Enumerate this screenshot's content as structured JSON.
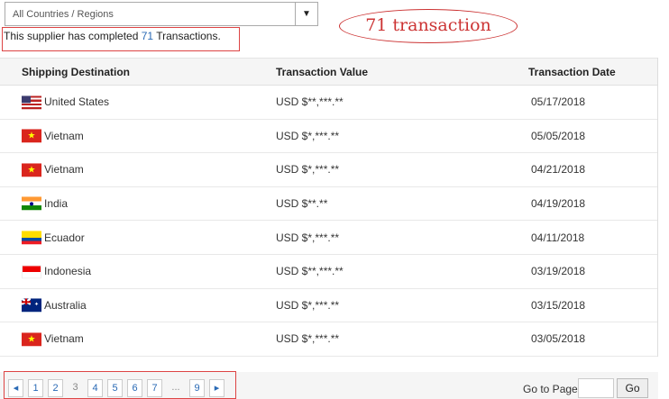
{
  "filter": {
    "selected": "All Countries / Regions"
  },
  "summary": {
    "prefix": "This supplier has completed ",
    "count": "71",
    "suffix": " Transactions."
  },
  "annotation": "71 transaction",
  "table": {
    "headers": [
      "Shipping Destination",
      "Transaction Value",
      "Transaction Date"
    ],
    "rows": [
      {
        "country": "United States",
        "flag": "us",
        "value": "USD $**,***.**",
        "date": "05/17/2018"
      },
      {
        "country": "Vietnam",
        "flag": "vn",
        "value": "USD $*,***.**",
        "date": "05/05/2018"
      },
      {
        "country": "Vietnam",
        "flag": "vn",
        "value": "USD $*,***.**",
        "date": "04/21/2018"
      },
      {
        "country": "India",
        "flag": "in",
        "value": "USD $**.**",
        "date": "04/19/2018"
      },
      {
        "country": "Ecuador",
        "flag": "ec",
        "value": "USD $*,***.**",
        "date": "04/11/2018"
      },
      {
        "country": "Indonesia",
        "flag": "id",
        "value": "USD $**,***.**",
        "date": "03/19/2018"
      },
      {
        "country": "Australia",
        "flag": "au",
        "value": "USD $*,***.**",
        "date": "03/15/2018"
      },
      {
        "country": "Vietnam",
        "flag": "vn",
        "value": "USD $*,***.**",
        "date": "03/05/2018"
      }
    ]
  },
  "pagination": {
    "prev": "◂",
    "pages": [
      "1",
      "2",
      "3",
      "4",
      "5",
      "6",
      "7",
      "...",
      "9"
    ],
    "current": "3",
    "next": "▸",
    "goto_label": "Go to Page",
    "go_value": "",
    "go_button": "Go"
  }
}
